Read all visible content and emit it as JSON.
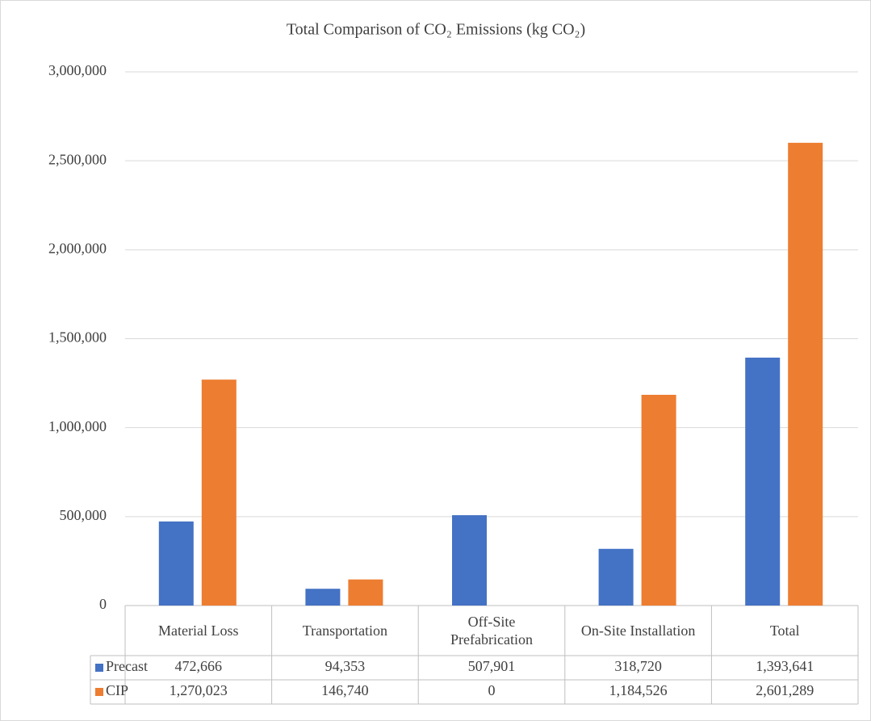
{
  "chart_data": {
    "type": "bar",
    "title": "Total Comparison of CO₂ Emissions (kg CO₂)",
    "categories": [
      "Material Loss",
      "Transportation",
      "Off-Site Prefabrication",
      "On-Site Installation",
      "Total"
    ],
    "series": [
      {
        "name": "Precast",
        "color": "#4472c4",
        "values": [
          472666,
          94353,
          507901,
          318720,
          1393641
        ],
        "value_labels": [
          "472,666",
          "94,353",
          "507,901",
          "318,720",
          "1,393,641"
        ]
      },
      {
        "name": "CIP",
        "color": "#ed7d31",
        "values": [
          1270023,
          146740,
          0,
          1184526,
          2601289
        ],
        "value_labels": [
          "1,270,023",
          "146,740",
          "0",
          "1,184,526",
          "2,601,289"
        ]
      }
    ],
    "ylim": [
      0,
      3000000
    ],
    "yticks": [
      0,
      {
        "value": 500000,
        "label": "500,000"
      },
      {
        "value": 1000000,
        "label": "1,000,000"
      },
      {
        "value": 1500000,
        "label": "1,500,000"
      },
      {
        "value": 2000000,
        "label": "2,000,000"
      },
      {
        "value": 2500000,
        "label": "2,500,000"
      },
      {
        "value": 3000000,
        "label": "3,000,000"
      }
    ],
    "grid": true
  }
}
